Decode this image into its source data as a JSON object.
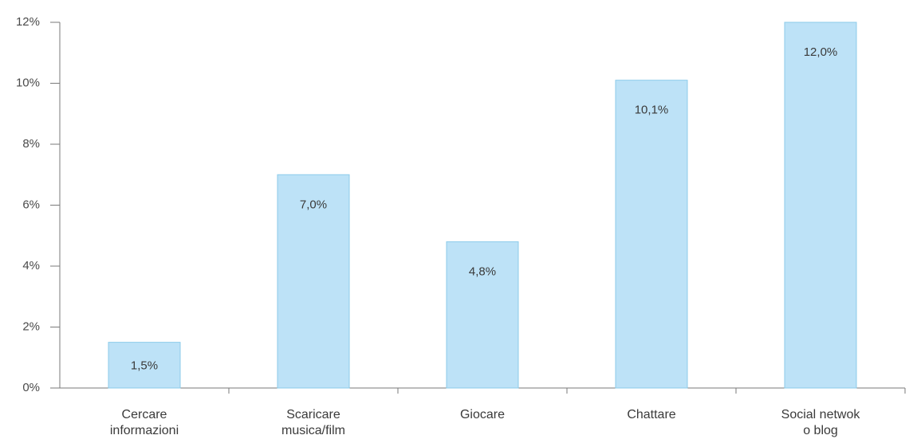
{
  "chart_data": {
    "type": "bar",
    "categories": [
      [
        "Cercare",
        "informazioni"
      ],
      [
        "Scaricare",
        "musica/film"
      ],
      [
        "Giocare"
      ],
      [
        "Chattare"
      ],
      [
        "Social netwok",
        "o blog"
      ]
    ],
    "values": [
      1.5,
      7.0,
      4.8,
      10.1,
      12.0
    ],
    "data_labels": [
      "1,5%",
      "7,0%",
      "4,8%",
      "10,1%",
      "12,0%"
    ],
    "ylim": [
      0,
      12
    ],
    "yticks": [
      0,
      2,
      4,
      6,
      8,
      10,
      12
    ],
    "ytick_labels": [
      "0%",
      "2%",
      "4%",
      "6%",
      "8%",
      "10%",
      "12%"
    ],
    "title": "",
    "xlabel": "",
    "ylabel": "",
    "grid": false,
    "legend": false,
    "colors": {
      "bar_fill": "#bde2f7",
      "bar_stroke": "#8ccbea",
      "axis": "#7a7a7a"
    }
  }
}
